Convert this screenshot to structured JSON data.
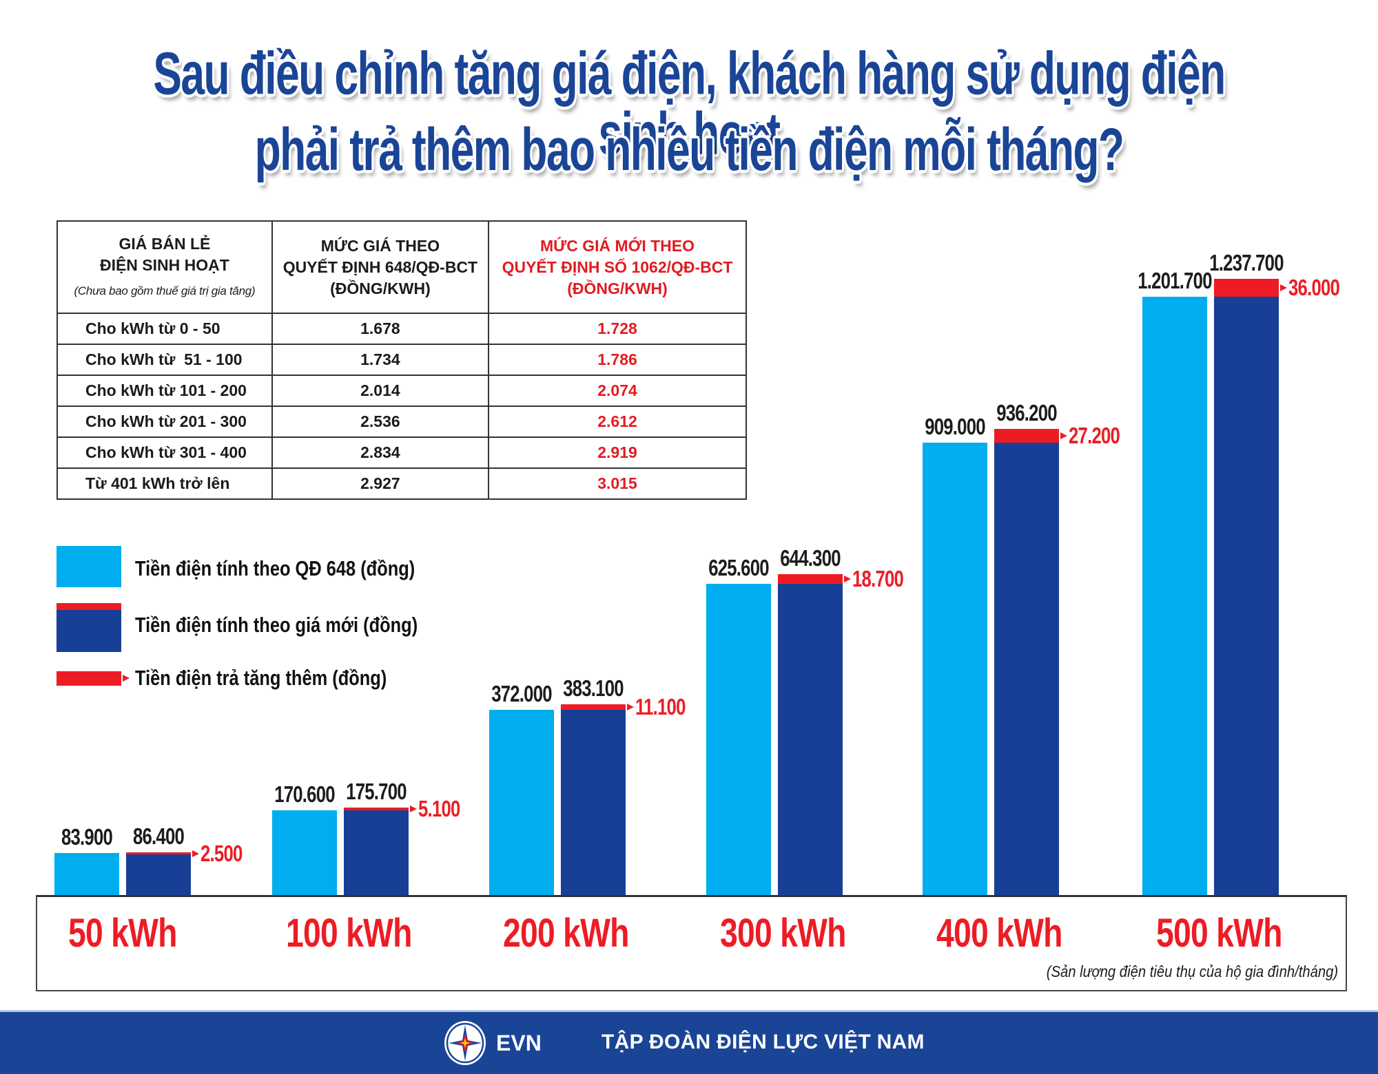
{
  "title": {
    "line1": "Sau điều chỉnh tăng giá điện, khách hàng sử dụng điện sinh hoạt",
    "line2": "phải trả thêm bao nhiêu tiền điện mỗi tháng?"
  },
  "price_table": {
    "headers": [
      {
        "lines": [
          "GIÁ BÁN LẺ",
          "ĐIỆN SINH HOẠT"
        ],
        "note": "(Chưa bao gồm thuế giá trị gia tăng)"
      },
      {
        "lines": [
          "MỨC GIÁ THEO",
          "QUYẾT ĐỊNH 648/QĐ-BCT",
          "(ĐỒNG/KWH)"
        ]
      },
      {
        "lines": [
          "MỨC GIÁ MỚI THEO",
          "QUYẾT ĐỊNH SỐ 1062/QĐ-BCT",
          "(ĐỒNG/KWH)"
        ]
      }
    ],
    "rows": [
      {
        "label": "Cho kWh từ 0 - 50",
        "old": "1.678",
        "new": "1.728"
      },
      {
        "label": "Cho kWh từ  51 - 100",
        "old": "1.734",
        "new": "1.786"
      },
      {
        "label": "Cho kWh từ 101 - 200",
        "old": "2.014",
        "new": "2.074"
      },
      {
        "label": "Cho kWh từ 201 - 300",
        "old": "2.536",
        "new": "2.612"
      },
      {
        "label": "Cho kWh từ 301 - 400",
        "old": "2.834",
        "new": "2.919"
      },
      {
        "label": "Từ 401 kWh trở lên",
        "old": "2.927",
        "new": "3.015"
      }
    ]
  },
  "legend": [
    {
      "label": "Tiền điện tính theo QĐ 648 (đồng)",
      "swatch": "old"
    },
    {
      "label": "Tiền điện tính theo giá mới (đồng)",
      "swatch": "new"
    },
    {
      "label": "Tiền điện trả tăng thêm (đồng)",
      "swatch": "increase"
    }
  ],
  "colors": {
    "title": "#1a4597",
    "old_bar": "#00adee",
    "new_bar": "#173f95",
    "increase": "#ed1c24",
    "footer": "#1a4597"
  },
  "chart_data": {
    "type": "bar",
    "title": "Sau điều chỉnh tăng giá điện, khách hàng sử dụng điện sinh hoạt phải trả thêm bao nhiêu tiền điện mỗi tháng?",
    "xlabel": "(Sản lượng điện tiêu thụ của hộ gia đình/tháng)",
    "ylabel": "",
    "categories": [
      "50 kWh",
      "100 kWh",
      "200 kWh",
      "300 kWh",
      "400 kWh",
      "500 kWh"
    ],
    "series": [
      {
        "name": "Tiền điện tính theo QĐ 648 (đồng)",
        "values": [
          83900,
          170600,
          372000,
          625600,
          909000,
          1201700
        ],
        "labels": [
          "83.900",
          "170.600",
          "372.000",
          "625.600",
          "909.000",
          "1.201.700"
        ]
      },
      {
        "name": "Tiền điện tính theo giá mới (đồng)",
        "values": [
          86400,
          175700,
          383100,
          644300,
          936200,
          1237700
        ],
        "labels": [
          "86.400",
          "175.700",
          "383.100",
          "644.300",
          "936.200",
          "1.237.700"
        ]
      },
      {
        "name": "Tiền điện trả tăng thêm (đồng)",
        "values": [
          2500,
          5100,
          11100,
          18700,
          27200,
          36000
        ],
        "labels": [
          "2.500",
          "5.100",
          "11.100",
          "18.700",
          "27.200",
          "36.000"
        ]
      }
    ],
    "ylim": [
      0,
      1237700
    ],
    "grid": false,
    "legend_position": "left-middle"
  },
  "footer": {
    "brand": "EVN",
    "org": "TẬP ĐOÀN ĐIỆN LỰC VIỆT NAM"
  }
}
